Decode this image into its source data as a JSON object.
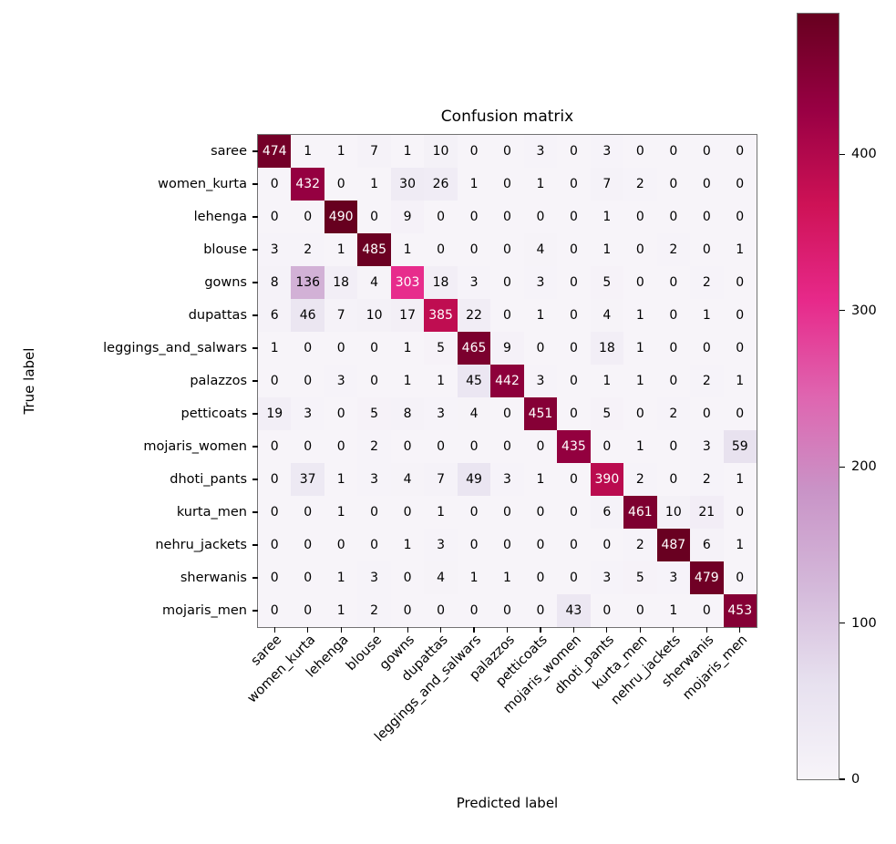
{
  "chart_data": {
    "type": "heatmap",
    "title": "Confusion matrix",
    "xlabel": "Predicted label",
    "ylabel": "True label",
    "categories": [
      "saree",
      "women_kurta",
      "lehenga",
      "blouse",
      "gowns",
      "dupattas",
      "leggings_and_salwars",
      "palazzos",
      "petticoats",
      "mojaris_women",
      "dhoti_pants",
      "kurta_men",
      "nehru_jackets",
      "sherwanis",
      "mojaris_men"
    ],
    "matrix": [
      [
        474,
        1,
        1,
        7,
        1,
        10,
        0,
        0,
        3,
        0,
        3,
        0,
        0,
        0,
        0
      ],
      [
        0,
        432,
        0,
        1,
        30,
        26,
        1,
        0,
        1,
        0,
        7,
        2,
        0,
        0,
        0
      ],
      [
        0,
        0,
        490,
        0,
        9,
        0,
        0,
        0,
        0,
        0,
        1,
        0,
        0,
        0,
        0
      ],
      [
        3,
        2,
        1,
        485,
        1,
        0,
        0,
        0,
        4,
        0,
        1,
        0,
        2,
        0,
        1
      ],
      [
        8,
        136,
        18,
        4,
        303,
        18,
        3,
        0,
        3,
        0,
        5,
        0,
        0,
        2,
        0
      ],
      [
        6,
        46,
        7,
        10,
        17,
        385,
        22,
        0,
        1,
        0,
        4,
        1,
        0,
        1,
        0
      ],
      [
        1,
        0,
        0,
        0,
        1,
        5,
        465,
        9,
        0,
        0,
        18,
        1,
        0,
        0,
        0
      ],
      [
        0,
        0,
        3,
        0,
        1,
        1,
        45,
        442,
        3,
        0,
        1,
        1,
        0,
        2,
        1
      ],
      [
        19,
        3,
        0,
        5,
        8,
        3,
        4,
        0,
        451,
        0,
        5,
        0,
        2,
        0,
        0
      ],
      [
        0,
        0,
        0,
        2,
        0,
        0,
        0,
        0,
        0,
        435,
        0,
        1,
        0,
        3,
        59
      ],
      [
        0,
        37,
        1,
        3,
        4,
        7,
        49,
        3,
        1,
        0,
        390,
        2,
        0,
        2,
        1
      ],
      [
        0,
        0,
        1,
        0,
        0,
        1,
        0,
        0,
        0,
        0,
        6,
        461,
        10,
        21,
        0
      ],
      [
        0,
        0,
        0,
        0,
        1,
        3,
        0,
        0,
        0,
        0,
        0,
        2,
        487,
        6,
        1
      ],
      [
        0,
        0,
        1,
        3,
        0,
        4,
        1,
        1,
        0,
        0,
        3,
        5,
        3,
        479,
        0
      ],
      [
        0,
        0,
        1,
        2,
        0,
        0,
        0,
        0,
        0,
        43,
        0,
        0,
        1,
        0,
        453
      ]
    ],
    "vmin": 0,
    "vmax": 490,
    "colormap": "PuRd",
    "colormap_stops": [
      "#f7f4f9",
      "#e7e1ef",
      "#d4b9da",
      "#c994c7",
      "#df65b0",
      "#e7298a",
      "#ce1256",
      "#980043",
      "#67001f"
    ],
    "colorbar_ticks": [
      0,
      100,
      200,
      300,
      400
    ],
    "annotation_color_light": "#ffffff",
    "annotation_color_dark": "#000000",
    "legend_position": "right-colorbar",
    "grid": false
  }
}
